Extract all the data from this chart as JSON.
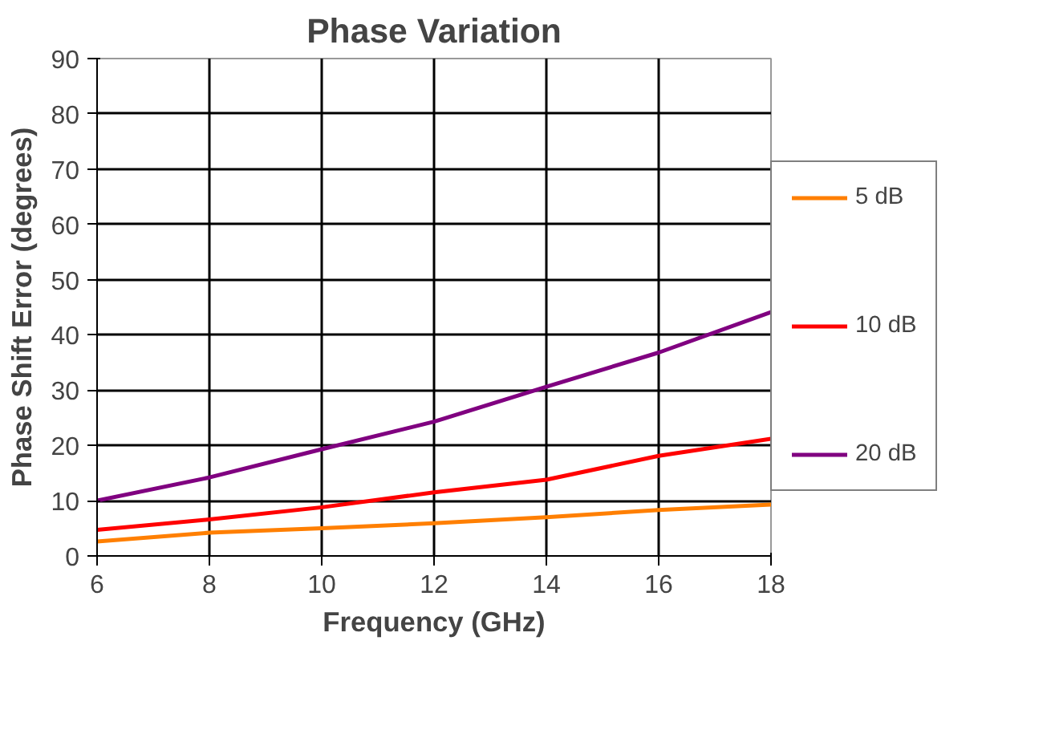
{
  "chart_data": {
    "type": "line",
    "title": "Phase Variation",
    "xlabel": "Frequency (GHz)",
    "ylabel": "Phase Shift Error (degrees)",
    "x": [
      6,
      8,
      10,
      12,
      14,
      16,
      18
    ],
    "series": [
      {
        "name": "5 dB",
        "color": "#ff7f00",
        "values": [
          2.6,
          4.2,
          5.0,
          5.9,
          7.0,
          8.3,
          9.3
        ]
      },
      {
        "name": "10 dB",
        "color": "#ff0000",
        "values": [
          4.7,
          6.6,
          8.8,
          11.5,
          13.8,
          18.1,
          21.2
        ]
      },
      {
        "name": "20 dB",
        "color": "#800080",
        "values": [
          10.0,
          14.2,
          19.3,
          24.3,
          30.6,
          36.8,
          44.1
        ]
      }
    ],
    "xlim": [
      6,
      18
    ],
    "ylim": [
      0,
      90
    ],
    "xticks": [
      6,
      8,
      10,
      12,
      14,
      16,
      18
    ],
    "yticks": [
      0,
      10,
      20,
      30,
      40,
      50,
      60,
      70,
      80,
      90
    ],
    "grid": true,
    "legend": "right",
    "marker": "none",
    "line_style": "solid"
  }
}
